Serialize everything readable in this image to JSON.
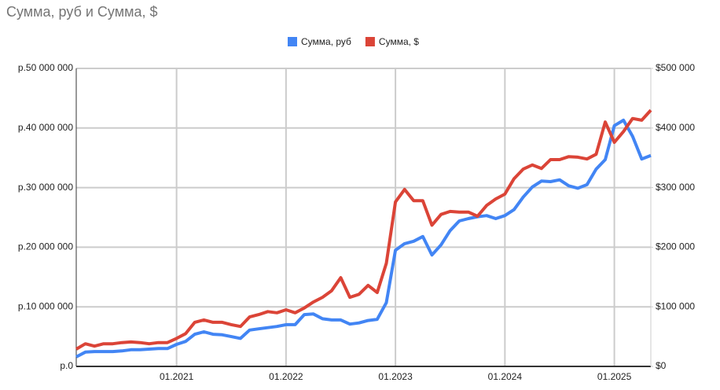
{
  "chart_data": {
    "type": "line",
    "title": "Сумма, руб и Сумма, $",
    "categories": [
      null,
      null,
      null,
      null,
      null,
      null,
      null,
      null,
      null,
      null,
      null,
      "01.2021",
      null,
      null,
      null,
      null,
      null,
      null,
      null,
      null,
      null,
      null,
      null,
      "01.2022",
      null,
      null,
      null,
      null,
      null,
      null,
      null,
      null,
      null,
      null,
      null,
      "01.2023",
      null,
      null,
      null,
      null,
      null,
      null,
      null,
      null,
      null,
      null,
      null,
      "01.2024",
      null,
      null,
      null,
      null,
      null,
      null,
      null,
      null,
      null,
      null,
      null,
      "01.2025",
      null,
      null,
      null,
      null
    ],
    "series": [
      {
        "name": "Сумма, руб",
        "color": "#4285f4",
        "axis": "y",
        "values": [
          1600000,
          2400000,
          2500000,
          2500000,
          2500000,
          2600000,
          2800000,
          2800000,
          2900000,
          3000000,
          3000000,
          3700000,
          4200000,
          5400000,
          5800000,
          5400000,
          5300000,
          5000000,
          4700000,
          6100000,
          6300000,
          6500000,
          6700000,
          7000000,
          7000000,
          8700000,
          8800000,
          8000000,
          7800000,
          7800000,
          7100000,
          7300000,
          7700000,
          7900000,
          10700000,
          19500000,
          20600000,
          21000000,
          21800000,
          18700000,
          20400000,
          22800000,
          24400000,
          24800000,
          25100000,
          25300000,
          24800000,
          25300000,
          26300000,
          28400000,
          30100000,
          31100000,
          31000000,
          31300000,
          30300000,
          29900000,
          30500000,
          33100000,
          34700000,
          40400000,
          41300000,
          38600000,
          34800000,
          35400000
        ]
      },
      {
        "name": "Сумма, $",
        "color": "#db4437",
        "axis": "y2",
        "values": [
          29000,
          38000,
          34000,
          38000,
          38000,
          40000,
          41000,
          40000,
          38000,
          40000,
          40000,
          47000,
          55000,
          74000,
          78000,
          74000,
          74000,
          70000,
          67000,
          83000,
          87000,
          92000,
          90000,
          95000,
          90000,
          98000,
          108000,
          116000,
          127000,
          149000,
          116000,
          121000,
          136000,
          124000,
          173000,
          276000,
          297000,
          278000,
          278000,
          237000,
          255000,
          260000,
          259000,
          259000,
          252000,
          270000,
          281000,
          289000,
          315000,
          331000,
          338000,
          332000,
          347000,
          347000,
          352000,
          351000,
          348000,
          356000,
          410000,
          376000,
          394000,
          416000,
          413000,
          430000
        ]
      }
    ],
    "ylim": [
      0,
      50000000
    ],
    "yticks": [
      {
        "value": 0,
        "label": "р.0"
      },
      {
        "value": 10000000,
        "label": "р.10 000 000"
      },
      {
        "value": 20000000,
        "label": "р.20 000 000"
      },
      {
        "value": 30000000,
        "label": "р.30 000 000"
      },
      {
        "value": 40000000,
        "label": "р.40 000 000"
      },
      {
        "value": 50000000,
        "label": "р.50 000 000"
      }
    ],
    "y2lim": [
      0,
      500000
    ],
    "y2ticks": [
      {
        "value": 0,
        "label": "$0"
      },
      {
        "value": 100000,
        "label": "$100 000"
      },
      {
        "value": 200000,
        "label": "$200 000"
      },
      {
        "value": 300000,
        "label": "$300 000"
      },
      {
        "value": 400000,
        "label": "$400 000"
      },
      {
        "value": 500000,
        "label": "$500 000"
      }
    ],
    "grid": true,
    "legend": "top"
  }
}
